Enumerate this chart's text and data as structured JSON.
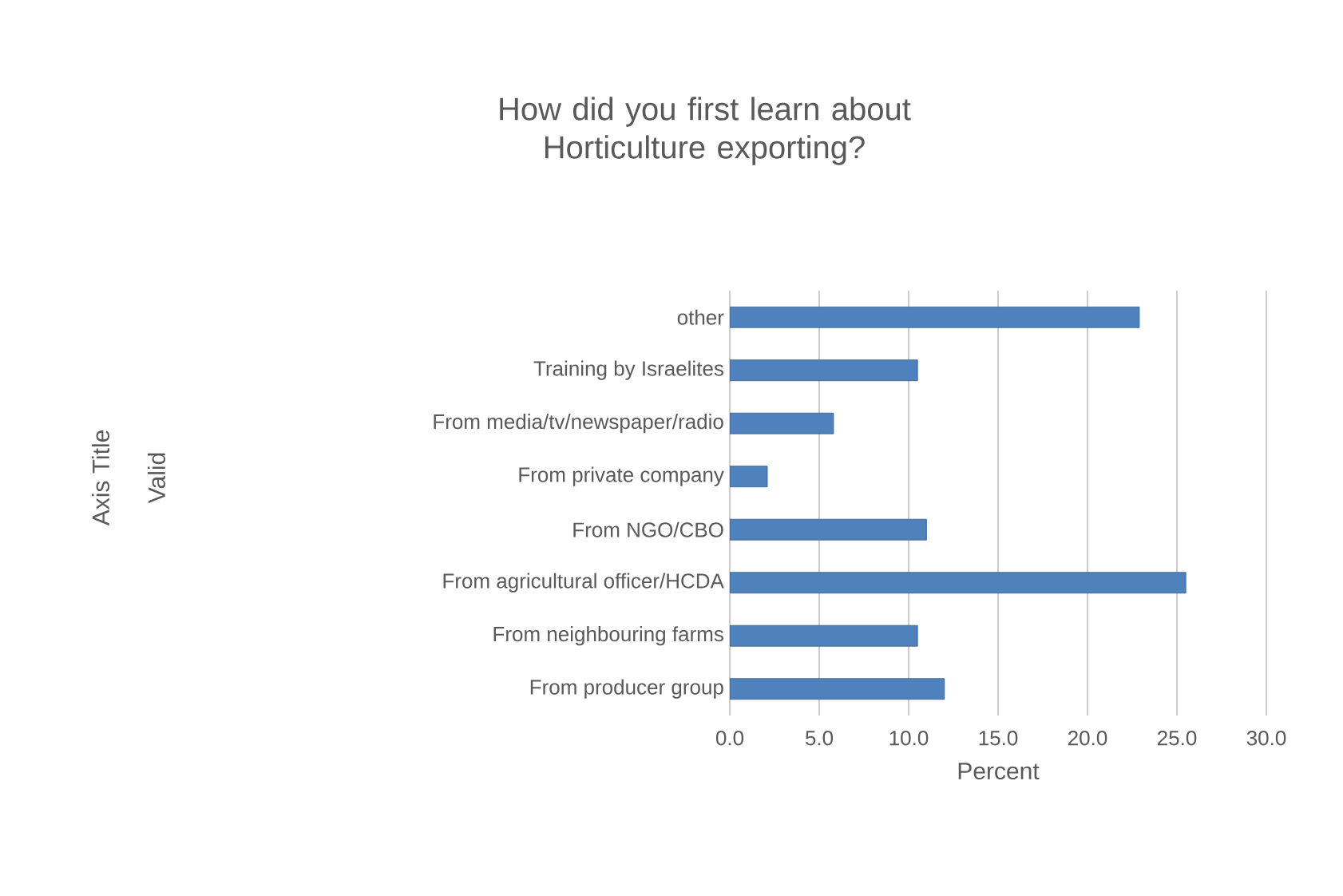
{
  "chart_data": {
    "type": "bar",
    "orientation": "horizontal",
    "title": "How did you first learn about Horticulture exporting?",
    "xlabel": "Percent",
    "annotations": [
      "Axis Title",
      "Valid"
    ],
    "categories": [
      "other",
      "Training by Israelites",
      "From media/tv/newspaper/radio",
      "From private company",
      "From NGO/CBO",
      "From agricultural officer/HCDA",
      "From neighbouring farms",
      "From producer group"
    ],
    "values": [
      22.9,
      10.5,
      5.8,
      2.1,
      11.0,
      25.5,
      10.5,
      12.0
    ],
    "color": "#4f81bd",
    "xlim": [
      0,
      30
    ],
    "xticks": [
      {
        "value": 0,
        "label": "0.0"
      },
      {
        "value": 5,
        "label": "5.0"
      },
      {
        "value": 10,
        "label": "10.0"
      },
      {
        "value": 15,
        "label": "15.0"
      },
      {
        "value": 20,
        "label": "20.0"
      },
      {
        "value": 25,
        "label": "25.0"
      },
      {
        "value": 30,
        "label": "30.0"
      }
    ],
    "grid": "x"
  }
}
